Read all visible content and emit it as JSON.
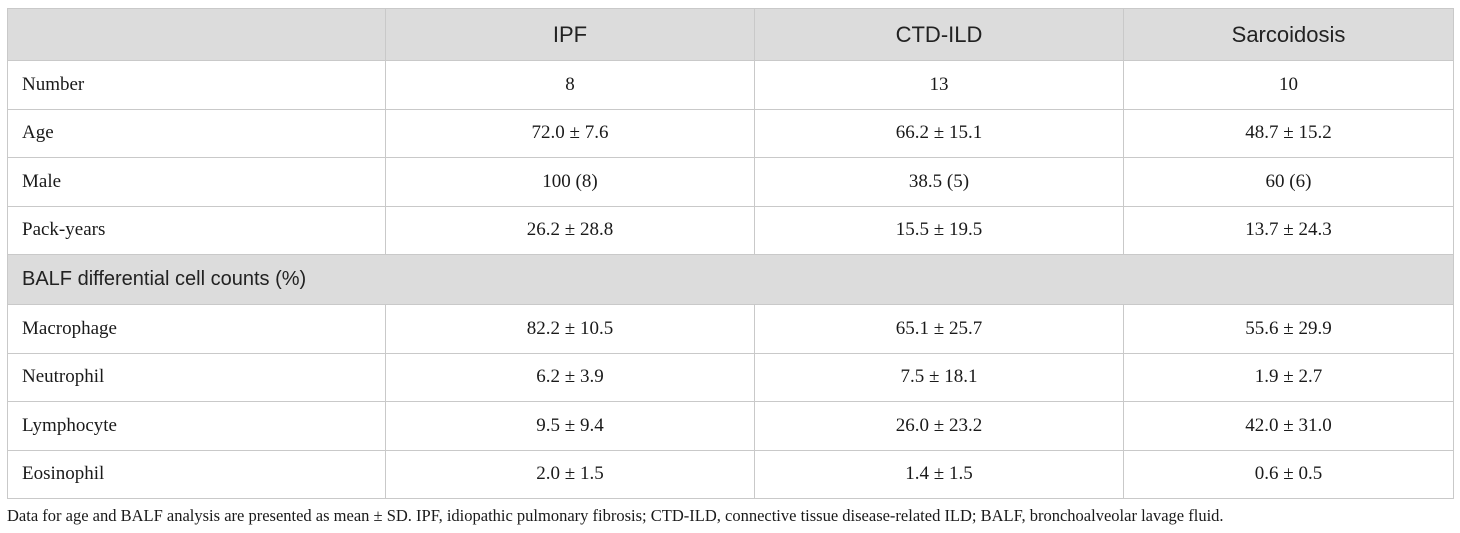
{
  "table": {
    "headers": [
      "",
      "IPF",
      "CTD-ILD",
      "Sarcoidosis"
    ],
    "rows_top": [
      {
        "label": "Number",
        "values": [
          "8",
          "13",
          "10"
        ]
      },
      {
        "label": "Age",
        "values": [
          "72.0 ± 7.6",
          "66.2 ± 15.1",
          "48.7 ± 15.2"
        ]
      },
      {
        "label": "Male",
        "values": [
          "100 (8)",
          "38.5 (5)",
          "60 (6)"
        ]
      },
      {
        "label": "Pack-years",
        "values": [
          "26.2 ± 28.8",
          "15.5 ± 19.5",
          "13.7 ± 24.3"
        ]
      }
    ],
    "section_label": "BALF differential cell counts (%)",
    "rows_bottom": [
      {
        "label": "Macrophage",
        "values": [
          "82.2 ± 10.5",
          "65.1 ± 25.7",
          "55.6 ± 29.9"
        ]
      },
      {
        "label": "Neutrophil",
        "values": [
          "6.2 ± 3.9",
          "7.5 ± 18.1",
          "1.9 ± 2.7"
        ]
      },
      {
        "label": "Lymphocyte",
        "values": [
          "9.5 ± 9.4",
          "26.0 ± 23.2",
          "42.0 ± 31.0"
        ]
      },
      {
        "label": "Eosinophil",
        "values": [
          "2.0 ± 1.5",
          "1.4 ± 1.5",
          "0.6 ± 0.5"
        ]
      }
    ]
  },
  "footnote": "Data for age and BALF analysis are presented as mean ± SD. IPF, idiopathic pulmonary fibrosis; CTD-ILD, connective tissue disease-related ILD; BALF, bronchoalveolar lavage fluid.",
  "colors": {
    "header_bg": "#dcdcdc",
    "border": "#c9c9c9",
    "text": "#1a1a1a"
  }
}
